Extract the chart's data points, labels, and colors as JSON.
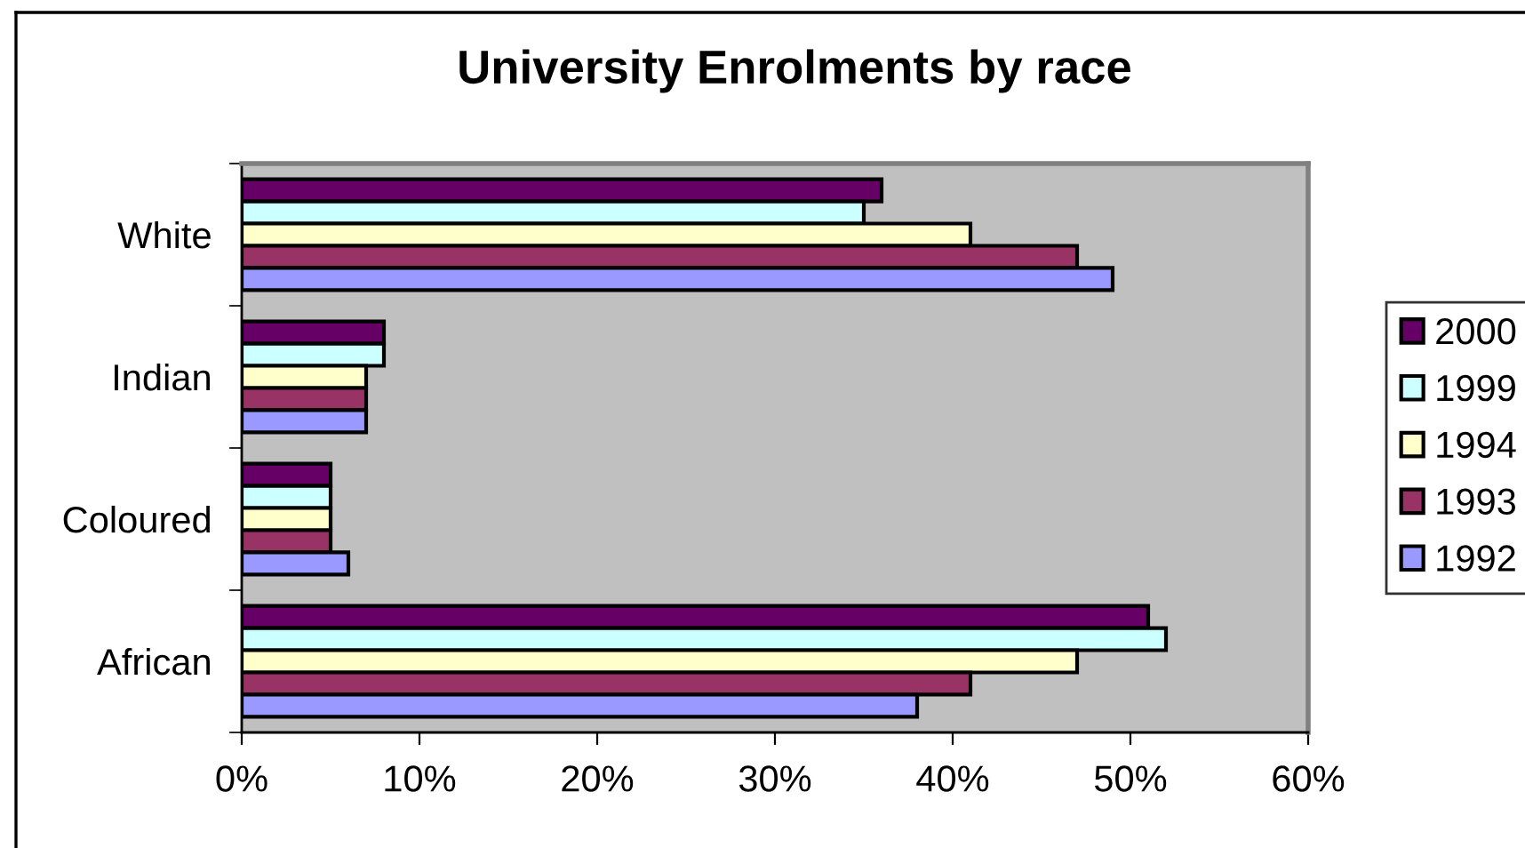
{
  "chart_data": {
    "type": "bar",
    "orientation": "horizontal",
    "title": "University Enrolments by race",
    "categories": [
      "White",
      "Indian",
      "Coloured",
      "African"
    ],
    "series": [
      {
        "name": "2000",
        "color": "#660066",
        "values": [
          36,
          8,
          5,
          51
        ]
      },
      {
        "name": "1999",
        "color": "#ccffff",
        "values": [
          35,
          8,
          5,
          52
        ]
      },
      {
        "name": "1994",
        "color": "#ffffcc",
        "values": [
          41,
          7,
          5,
          47
        ]
      },
      {
        "name": "1993",
        "color": "#993366",
        "values": [
          47,
          7,
          5,
          41
        ]
      },
      {
        "name": "1992",
        "color": "#9999ff",
        "values": [
          49,
          7,
          6,
          38
        ]
      }
    ],
    "xlim": [
      0,
      60
    ],
    "xticks": [
      {
        "value": 0,
        "label": "0%"
      },
      {
        "value": 10,
        "label": "10%"
      },
      {
        "value": 20,
        "label": "20%"
      },
      {
        "value": 30,
        "label": "30%"
      },
      {
        "value": 40,
        "label": "40%"
      },
      {
        "value": 50,
        "label": "50%"
      },
      {
        "value": 60,
        "label": "60%"
      }
    ],
    "grid": false,
    "legend": "right"
  }
}
